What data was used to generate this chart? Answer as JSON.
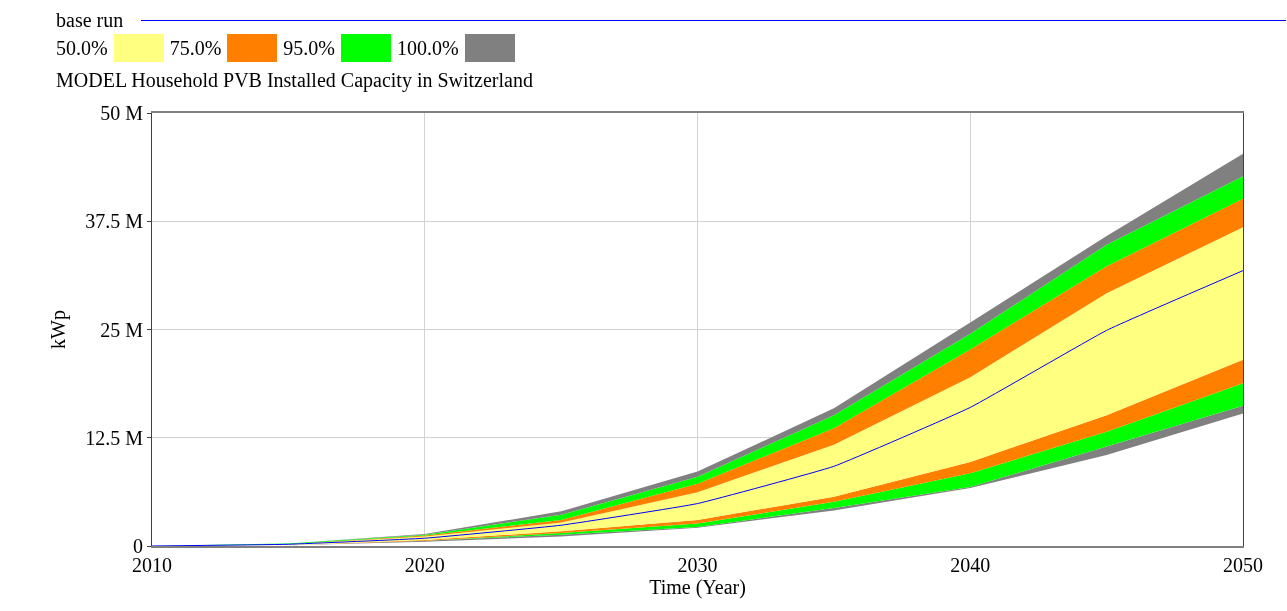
{
  "chart_data": {
    "type": "line",
    "title": "MODEL Household PVB Installed Capacity in Switzerland",
    "xlabel": "Time (Year)",
    "ylabel": "kWp",
    "legend_title": "base run",
    "legend": "top left",
    "grid": true,
    "line_style": "solid",
    "marker": "none",
    "stacked": true,
    "x": [
      2010,
      2015,
      2020,
      2025,
      2030,
      2035,
      2040,
      2045,
      2050
    ],
    "xlim": [
      2010,
      2050
    ],
    "xticks": [
      2010,
      2020,
      2030,
      2040,
      2050
    ],
    "ylim": [
      0,
      50000000
    ],
    "yticks": [
      0,
      {
        "value": 12500000,
        "label": "12.5 M"
      },
      {
        "value": 25000000,
        "label": "25 M"
      },
      {
        "value": 37500000,
        "label": "37.5 M"
      },
      {
        "value": 50000000,
        "label": "50 M"
      }
    ],
    "series": [
      {
        "type": "area",
        "color": "#ffffff",
        "values": [
          0,
          100000,
          500000,
          1100000,
          2100000,
          4100000,
          6700000,
          10500000,
          15300000
        ]
      },
      {
        "type": "area",
        "color": "#808080",
        "values": [
          0,
          0,
          100000,
          200000,
          100000,
          300000,
          100000,
          1000000,
          900000
        ]
      },
      {
        "type": "area",
        "color": "#00ff00",
        "values": [
          0,
          0,
          0,
          200000,
          400000,
          700000,
          1600000,
          1700000,
          2600000
        ]
      },
      {
        "type": "area",
        "color": "#ff8000",
        "values": [
          0,
          0,
          100000,
          200000,
          400000,
          600000,
          1300000,
          1900000,
          2700000
        ]
      },
      {
        "type": "area",
        "name": "50.0%",
        "color": "#ffff80",
        "values": [
          0,
          100000,
          400000,
          1000000,
          3200000,
          6000000,
          9800000,
          14100000,
          15300000
        ]
      },
      {
        "type": "area",
        "name": "75.0%",
        "color": "#ff8000",
        "values": [
          0,
          0,
          100000,
          300000,
          1000000,
          1900000,
          3200000,
          3100000,
          3300000
        ]
      },
      {
        "type": "area",
        "name": "95.0%",
        "color": "#00ff00",
        "values": [
          0,
          100000,
          100000,
          600000,
          800000,
          1500000,
          1800000,
          2500000,
          2600000
        ]
      },
      {
        "type": "area",
        "name": "100.0%",
        "color": "#808080",
        "values": [
          0,
          0,
          100000,
          400000,
          600000,
          800000,
          1300000,
          1000000,
          2600000
        ]
      },
      {
        "color": "#0000ff",
        "values": [
          0,
          200000,
          900000,
          2400000,
          4900000,
          9200000,
          16000000,
          24900000,
          31800000
        ]
      }
    ]
  }
}
